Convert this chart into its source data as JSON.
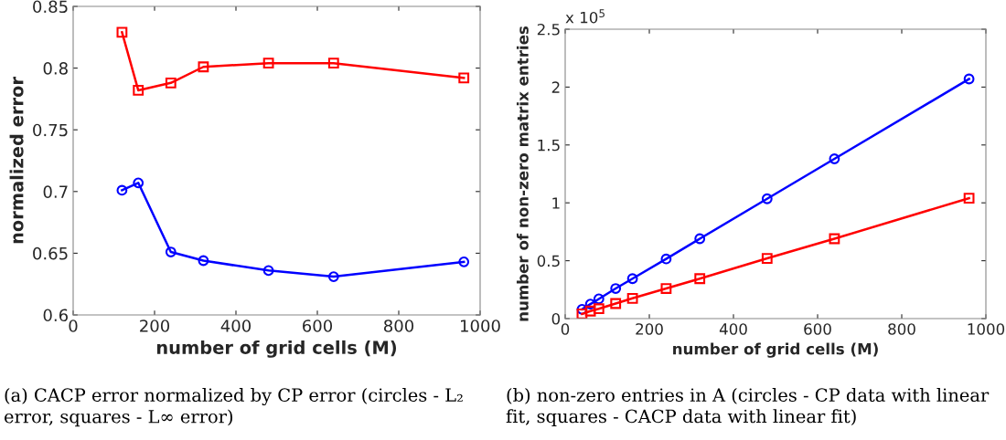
{
  "chart_data": [
    {
      "type": "line",
      "xlabel": "number of grid cells (M)",
      "ylabel": "normalized error",
      "x": [
        120,
        160,
        240,
        320,
        480,
        640,
        960
      ],
      "series": [
        {
          "color": "#ff0000",
          "marker": "square",
          "values": [
            0.829,
            0.782,
            0.788,
            0.801,
            0.804,
            0.804,
            0.792
          ]
        },
        {
          "color": "#0000ff",
          "marker": "circle",
          "values": [
            0.701,
            0.707,
            0.651,
            0.644,
            0.636,
            0.631,
            0.643
          ]
        }
      ],
      "xlim": [
        0,
        1000
      ],
      "xticks": [
        0,
        200,
        400,
        600,
        800,
        1000
      ],
      "ylim": [
        0.6,
        0.85
      ],
      "yticks": [
        0.6,
        0.65,
        0.7,
        0.75,
        0.8,
        0.85
      ],
      "grid": false,
      "legend": false,
      "line_style": "solid",
      "annotations": [
        "(a) CACP error normalized by CP error (circles - L₂ error, squares - L∞ error)"
      ]
    },
    {
      "type": "line",
      "xlabel": "number of grid cells (M)",
      "ylabel": "number of non-zero matrix entries",
      "x": [
        40,
        60,
        80,
        120,
        160,
        240,
        320,
        480,
        640,
        960
      ],
      "series": [
        {
          "color": "#0000ff",
          "marker": "circle",
          "values": [
            0.08,
            0.125,
            0.17,
            0.26,
            0.345,
            0.515,
            0.69,
            1.035,
            1.38,
            2.07
          ]
        },
        {
          "color": "#ff0000",
          "marker": "square",
          "values": [
            0.04,
            0.065,
            0.085,
            0.13,
            0.175,
            0.26,
            0.345,
            0.52,
            0.69,
            1.04
          ]
        }
      ],
      "xlim": [
        0,
        1000
      ],
      "xticks": [
        0,
        200,
        400,
        600,
        800,
        1000
      ],
      "ylim": [
        0,
        2.5
      ],
      "yticks": [
        0,
        0.5,
        1,
        1.5,
        2,
        2.5
      ],
      "grid": false,
      "legend": false,
      "line_style": "solid",
      "annotations": [
        "x 10$^{5}$",
        "(b) non-zero entries in A (circles - CP data with linear fit, squares - CACP data with linear fit)"
      ]
    }
  ]
}
